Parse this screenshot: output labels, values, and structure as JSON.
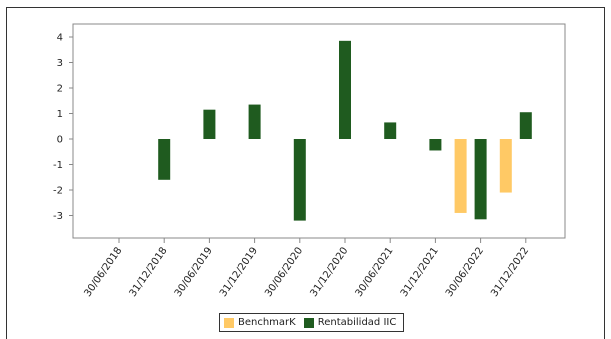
{
  "chart_data": {
    "type": "bar",
    "categories": [
      "30/06/2018",
      "31/12/2018",
      "30/06/2019",
      "31/12/2019",
      "30/06/2020",
      "31/12/2020",
      "30/06/2021",
      "31/12/2021",
      "30/06/2022",
      "31/12/2022"
    ],
    "series": [
      {
        "name": "BenchmarK",
        "color": "#FFC965",
        "values": [
          null,
          null,
          null,
          null,
          null,
          null,
          null,
          null,
          -2.9,
          -2.1
        ]
      },
      {
        "name": "Rentabilidad IIC",
        "color": "#1F5B1F",
        "values": [
          null,
          -1.6,
          1.15,
          1.35,
          -3.2,
          3.85,
          0.65,
          -0.45,
          -3.15,
          1.05
        ]
      }
    ],
    "yticks": [
      4,
      3,
      2,
      1,
      0,
      -1,
      -2,
      -3
    ],
    "ylim": [
      -3.95,
      4.4
    ],
    "title": "",
    "xlabel": "",
    "ylabel": "",
    "legend_position": "bottom-center",
    "grid": false
  }
}
